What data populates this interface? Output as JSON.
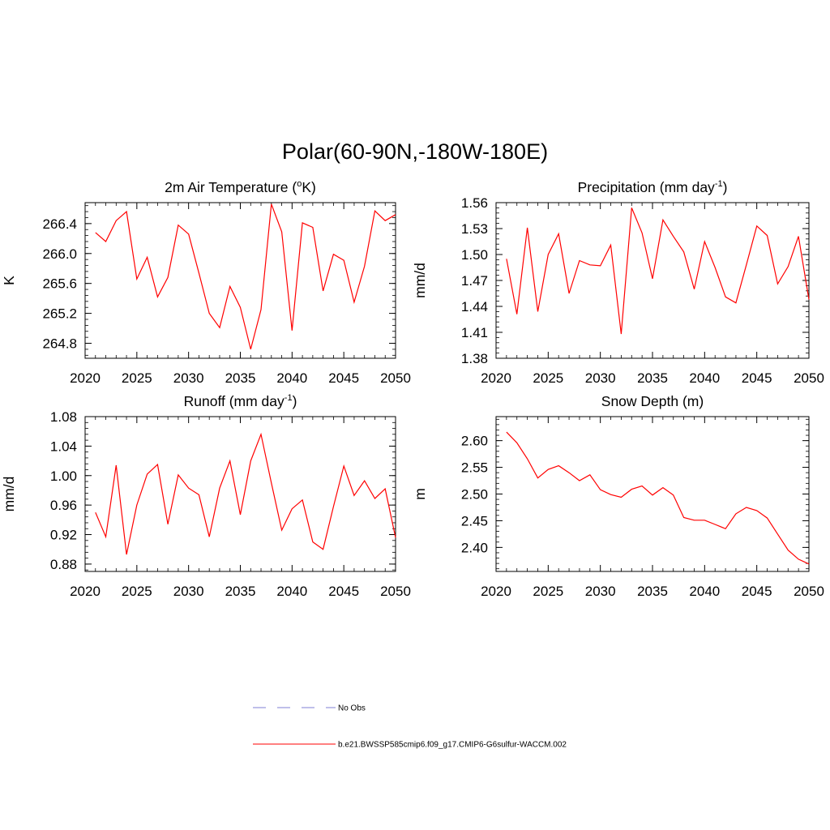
{
  "figure": {
    "title": "Polar(60-90N,-180W-180E)"
  },
  "legend": {
    "obs_label": "No Obs",
    "obs_color": "#9999dd",
    "model_label": "b.e21.BWSSP585cmip6.f09_g17.CMIP6-G6sulfur-WACCM.002",
    "model_color": "#ff0000"
  },
  "chart_data": [
    {
      "type": "line",
      "title": "2m Air Temperature (",
      "title_sup": "o",
      "title_tail": "K)",
      "xlabel": "",
      "ylabel": "K",
      "xlim": [
        2020,
        2050
      ],
      "ylim": [
        264.6,
        266.68
      ],
      "xticks": [
        2020,
        2025,
        2030,
        2035,
        2040,
        2045,
        2050
      ],
      "yticks": [
        264.8,
        265.2,
        265.6,
        266.0,
        266.4
      ],
      "tick_decimals": 1,
      "series": [
        {
          "color": "#ff0000",
          "x": [
            2021,
            2022,
            2023,
            2024,
            2025,
            2026,
            2027,
            2028,
            2029,
            2030,
            2031,
            2032,
            2033,
            2034,
            2035,
            2036,
            2037,
            2038,
            2039,
            2040,
            2041,
            2042,
            2043,
            2044,
            2045,
            2046,
            2047,
            2048,
            2049,
            2050
          ],
          "values": [
            266.28,
            266.16,
            266.44,
            266.56,
            265.66,
            265.95,
            265.42,
            265.68,
            266.38,
            266.26,
            265.74,
            265.2,
            265.01,
            265.56,
            265.28,
            264.72,
            265.25,
            266.66,
            266.29,
            264.97,
            266.41,
            266.35,
            265.5,
            265.99,
            265.91,
            265.35,
            265.83,
            266.57,
            266.44,
            266.52
          ]
        }
      ]
    },
    {
      "type": "line",
      "title": "Precipitation (mm day",
      "title_sup": "-1",
      "title_tail": ")",
      "xlabel": "",
      "ylabel": "mm/d",
      "xlim": [
        2020,
        2050
      ],
      "ylim": [
        1.38,
        1.56
      ],
      "xticks": [
        2020,
        2025,
        2030,
        2035,
        2040,
        2045,
        2050
      ],
      "yticks": [
        1.38,
        1.41,
        1.44,
        1.47,
        1.5,
        1.53,
        1.56
      ],
      "tick_decimals": 2,
      "series": [
        {
          "color": "#ff0000",
          "x": [
            2021,
            2022,
            2023,
            2024,
            2025,
            2026,
            2027,
            2028,
            2029,
            2030,
            2031,
            2032,
            2033,
            2034,
            2035,
            2036,
            2037,
            2038,
            2039,
            2040,
            2041,
            2042,
            2043,
            2044,
            2045,
            2046,
            2047,
            2048,
            2049,
            2050
          ],
          "values": [
            1.495,
            1.431,
            1.531,
            1.434,
            1.5,
            1.524,
            1.455,
            1.493,
            1.488,
            1.487,
            1.511,
            1.408,
            1.554,
            1.525,
            1.472,
            1.54,
            1.521,
            1.503,
            1.46,
            1.515,
            1.485,
            1.451,
            1.444,
            1.488,
            1.533,
            1.522,
            1.466,
            1.486,
            1.521,
            1.448
          ]
        }
      ]
    },
    {
      "type": "line",
      "title": "Runoff (mm day",
      "title_sup": "-1",
      "title_tail": ")",
      "xlabel": "",
      "ylabel": "mm/d",
      "xlim": [
        2020,
        2050
      ],
      "ylim": [
        0.87,
        1.08
      ],
      "xticks": [
        2020,
        2025,
        2030,
        2035,
        2040,
        2045,
        2050
      ],
      "yticks": [
        0.88,
        0.92,
        0.96,
        1.0,
        1.04,
        1.08
      ],
      "tick_decimals": 2,
      "series": [
        {
          "color": "#ff0000",
          "x": [
            2021,
            2022,
            2023,
            2024,
            2025,
            2026,
            2027,
            2028,
            2029,
            2030,
            2031,
            2032,
            2033,
            2034,
            2035,
            2036,
            2037,
            2038,
            2039,
            2040,
            2041,
            2042,
            2043,
            2044,
            2045,
            2046,
            2047,
            2048,
            2049,
            2050
          ],
          "values": [
            0.95,
            0.917,
            1.014,
            0.893,
            0.96,
            1.002,
            1.015,
            0.934,
            1.001,
            0.983,
            0.974,
            0.917,
            0.983,
            1.02,
            0.947,
            1.02,
            1.056,
            0.99,
            0.926,
            0.955,
            0.967,
            0.91,
            0.9,
            0.958,
            1.013,
            0.973,
            0.993,
            0.969,
            0.982,
            0.916
          ]
        }
      ]
    },
    {
      "type": "line",
      "title": "Snow Depth (m)",
      "title_sup": "",
      "title_tail": "",
      "xlabel": "",
      "ylabel": "m",
      "xlim": [
        2020,
        2050
      ],
      "ylim": [
        2.355,
        2.645
      ],
      "xticks": [
        2020,
        2025,
        2030,
        2035,
        2040,
        2045,
        2050
      ],
      "yticks": [
        2.4,
        2.45,
        2.5,
        2.55,
        2.6
      ],
      "tick_decimals": 2,
      "series": [
        {
          "color": "#ff0000",
          "x": [
            2021,
            2022,
            2023,
            2024,
            2025,
            2026,
            2027,
            2028,
            2029,
            2030,
            2031,
            2032,
            2033,
            2034,
            2035,
            2036,
            2037,
            2038,
            2039,
            2040,
            2041,
            2042,
            2043,
            2044,
            2045,
            2046,
            2047,
            2048,
            2049,
            2050
          ],
          "values": [
            2.616,
            2.596,
            2.566,
            2.53,
            2.546,
            2.553,
            2.54,
            2.525,
            2.536,
            2.508,
            2.499,
            2.494,
            2.509,
            2.515,
            2.498,
            2.512,
            2.498,
            2.456,
            2.451,
            2.451,
            2.443,
            2.435,
            2.463,
            2.475,
            2.469,
            2.455,
            2.425,
            2.395,
            2.378,
            2.369
          ]
        }
      ]
    }
  ]
}
